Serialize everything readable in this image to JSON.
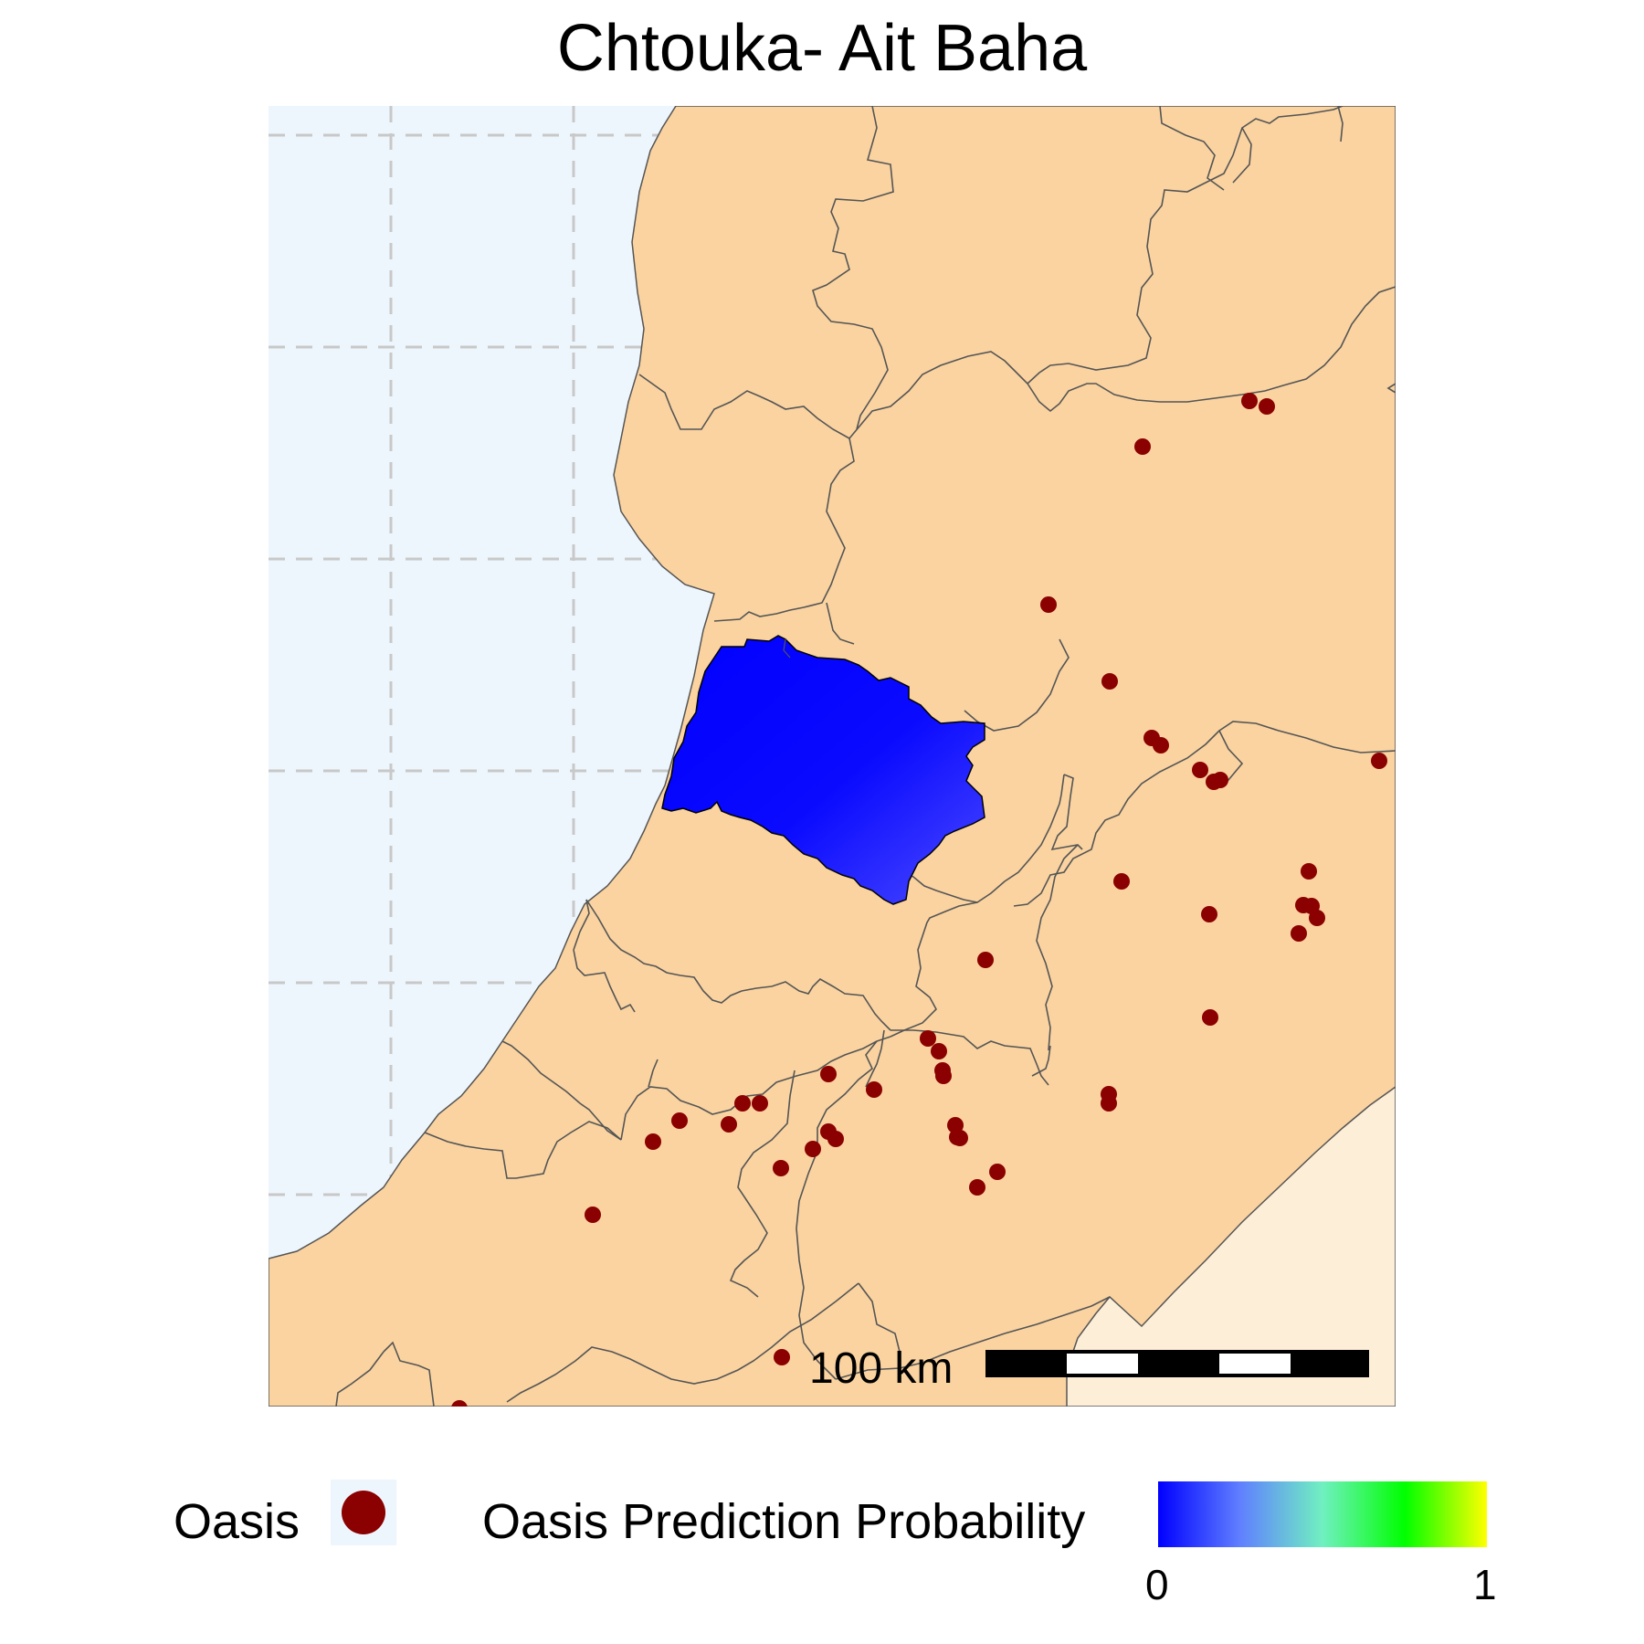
{
  "title": "Chtouka- Ait Baha",
  "colors": {
    "sea": "#eef6fd",
    "land": "#fad3a0",
    "desert": "#fdeed8",
    "grid": "#c8c8c8",
    "border": "#555555",
    "oasis": "#8b0000",
    "region_outline": "#000000"
  },
  "scale_bar": {
    "label": "100 km"
  },
  "legend": {
    "oasis_label": "Oasis",
    "oasis_icon": "filled-circle",
    "probability_label": "Oasis Prediction Probability",
    "scale_min": "0",
    "scale_max": "1",
    "colormap": [
      "#0000ff",
      "#6080ff",
      "#70f0c0",
      "#00ff00",
      "#ffff00"
    ]
  },
  "prediction_region": {
    "name": "Chtouka- Ait Baha",
    "probability_range": [
      0.0,
      0.12
    ]
  },
  "oasis_count": 48
}
